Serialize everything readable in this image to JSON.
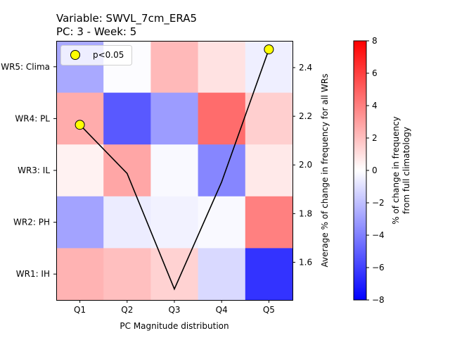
{
  "chart_data": {
    "type": "heatmap",
    "title_line1": "Variable: SWVL_7cm_ERA5",
    "title_line2": "PC: 3 - Week: 5",
    "xlabel": "PC Magnitude distribution",
    "categories": [
      "Q1",
      "Q2",
      "Q3",
      "Q4",
      "Q5"
    ],
    "rows": [
      "WR5: Clima",
      "WR4: PL",
      "WR3: IL",
      "WR2: PH",
      "WR1: IH"
    ],
    "values": [
      [
        -2.7,
        -0.1,
        2.2,
        0.9,
        -0.5
      ],
      [
        2.6,
        -5.2,
        -3.1,
        4.6,
        1.5
      ],
      [
        0.4,
        2.8,
        -0.2,
        -3.8,
        0.7
      ],
      [
        -2.9,
        -0.6,
        -0.4,
        -0.2,
        4.0
      ],
      [
        2.4,
        2.0,
        1.4,
        -1.2,
        -6.4
      ]
    ],
    "colorbar": {
      "label_line1": "% of change in frequency",
      "label_line2": "from full climatology",
      "range": [
        -8,
        8
      ],
      "ticks": [
        "8",
        "6",
        "4",
        "2",
        "0",
        "−2",
        "−4",
        "−6",
        "−8"
      ],
      "colormap": "bwr",
      "low_color": "#0000ff",
      "mid_color": "#ffffff",
      "high_color": "#ff0000"
    },
    "line_series": {
      "ylabel": "Average % of change in frequency for all WRs",
      "ylim": [
        1.445,
        2.51
      ],
      "yticks": [
        "1.6",
        "1.8",
        "2.0",
        "2.2",
        "2.4"
      ],
      "values": [
        2.165,
        1.965,
        1.49,
        1.93,
        2.475
      ],
      "significant": [
        true,
        false,
        false,
        false,
        true
      ],
      "color": "#000000",
      "marker_color": "#ffff00"
    },
    "legend": {
      "label": "p<0.05",
      "position": "top-left"
    }
  }
}
